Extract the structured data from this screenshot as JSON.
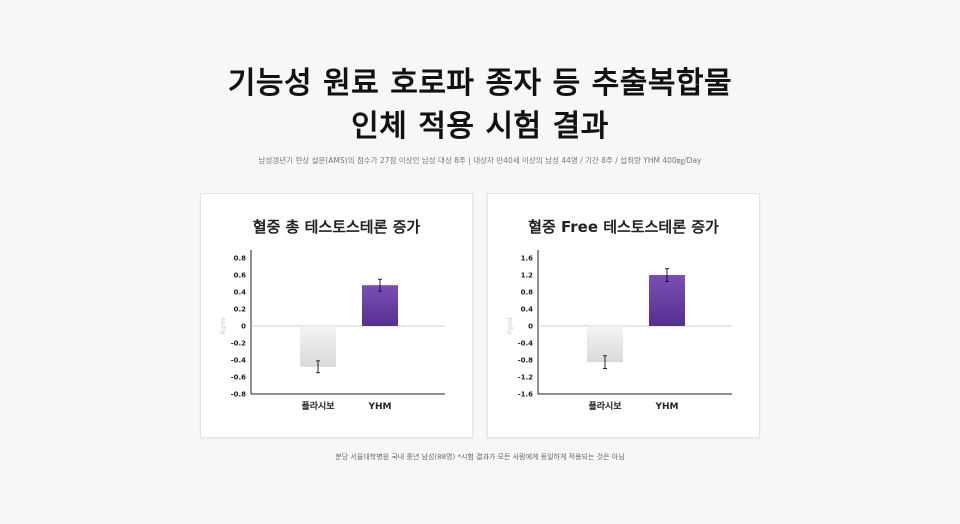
{
  "header": {
    "title_line1": "기능성 원료 호로파 종자 등 추출복합물",
    "title_line2": "인체 적용 시험 결과",
    "subtitle": "남성갱년기 현상 설문(AMS)의 점수가 27점 이상인 남성 대상 8주 | 대상자 만40세 이상의 남성 44명 / 기간 8주 / 섭취량 YHM 400㎎/Day"
  },
  "footnote": "분당 서울대학병원 국내 중년 남성(88명) *시험 결과가 모든 사람에게 동일하게 적용되는 것은 아님",
  "colors": {
    "placebo_top": "#f4f4f4",
    "placebo_bottom": "#d9d9d9",
    "yhm_top": "#7a4fb5",
    "yhm_bottom": "#55308f"
  },
  "chart_data": [
    {
      "type": "bar",
      "title": "혈중 총 테스토스테론 증가",
      "ylabel": "Ng/ml",
      "categories": [
        "플라시보",
        "YHM"
      ],
      "values": [
        -0.48,
        0.48
      ],
      "errors": [
        0.07,
        0.07
      ],
      "ylim": [
        -0.8,
        0.8
      ],
      "yticks": [
        "0.8",
        "0.6",
        "0.4",
        "0.2",
        "0",
        "-0.2",
        "-0.4",
        "-0.6",
        "-0.8"
      ],
      "grid": false
    },
    {
      "type": "bar",
      "title": "혈중 Free 테스토스테론 증가",
      "ylabel": "Pg/ml",
      "categories": [
        "플라시보",
        "YHM"
      ],
      "values": [
        -0.85,
        1.2
      ],
      "errors": [
        0.15,
        0.15
      ],
      "ylim": [
        -1.6,
        1.6
      ],
      "yticks": [
        "1.6",
        "1.2",
        "0.8",
        "0.4",
        "0",
        "-0.4",
        "-0.8",
        "-1.2",
        "-1.6"
      ],
      "grid": false
    }
  ]
}
